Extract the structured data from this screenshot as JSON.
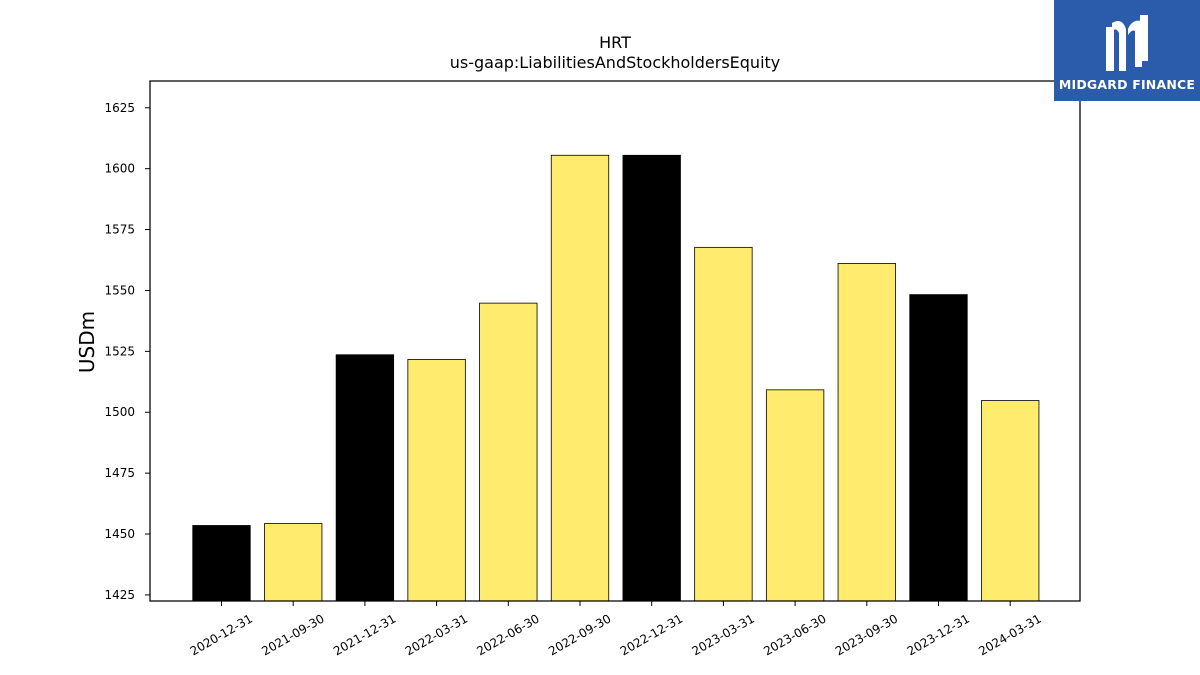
{
  "chart_data": {
    "type": "bar",
    "title": "HRT",
    "subtitle": "us-gaap:LiabilitiesAndStockholdersEquity",
    "xlabel": "",
    "ylabel": "USDm",
    "ylim": [
      1422.5,
      1636
    ],
    "yticks": [
      1425,
      1450,
      1475,
      1500,
      1525,
      1550,
      1575,
      1600,
      1625
    ],
    "categories": [
      "2020-12-31",
      "2021-09-30",
      "2021-12-31",
      "2022-03-31",
      "2022-06-30",
      "2022-09-30",
      "2022-12-31",
      "2023-03-31",
      "2023-06-30",
      "2023-09-30",
      "2023-12-31",
      "2024-03-31"
    ],
    "values": [
      1453.5,
      1454.3,
      1523.6,
      1521.7,
      1544.8,
      1605.5,
      1605.5,
      1567.7,
      1509.2,
      1561.1,
      1548.3,
      1504.8
    ],
    "bar_colors": [
      "#000000",
      "#ffec6e",
      "#000000",
      "#ffec6e",
      "#ffec6e",
      "#ffec6e",
      "#000000",
      "#ffec6e",
      "#ffec6e",
      "#ffec6e",
      "#000000",
      "#ffec6e"
    ],
    "grid": false,
    "legend": "none"
  },
  "logo": {
    "text": "MIDGARD FINANCE",
    "icon": "midgard-logo-icon",
    "background": "#2b5bab"
  }
}
